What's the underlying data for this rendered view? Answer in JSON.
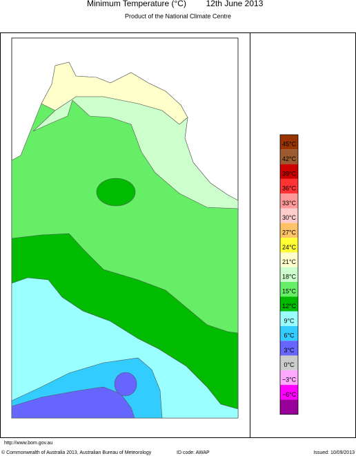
{
  "header": {
    "title": "Minimum Temperature (°C)",
    "date": "12th June 2013",
    "subtitle": "Product of the National Climate Centre"
  },
  "legend": {
    "labels": [
      "45°C",
      "42°C",
      "39°C",
      "36°C",
      "33°C",
      "30°C",
      "27°C",
      "24°C",
      "21°C",
      "18°C",
      "15°C",
      "12°C",
      "9°C",
      "6°C",
      "3°C",
      "0°C",
      "−3°C",
      "−6°C"
    ],
    "colors": [
      "#993300",
      "#9c5a30",
      "#cc0000",
      "#ff3333",
      "#ff9999",
      "#ffcccc",
      "#ffc266",
      "#ffff33",
      "#ffffcc",
      "#ccffcc",
      "#66ee66",
      "#00bb00",
      "#99ffff",
      "#33ccff",
      "#6666ff",
      "#cccccc",
      "#ffaaff",
      "#ff00ff",
      "#990099"
    ]
  },
  "footer": {
    "url": "http://www.bom.gov.au",
    "copyright": "© Commonwealth of Australia 2013, Australian Bureau of Meteorology",
    "id_code": "ID code: AWAP",
    "issued": "Issued: 10/09/2013"
  }
}
